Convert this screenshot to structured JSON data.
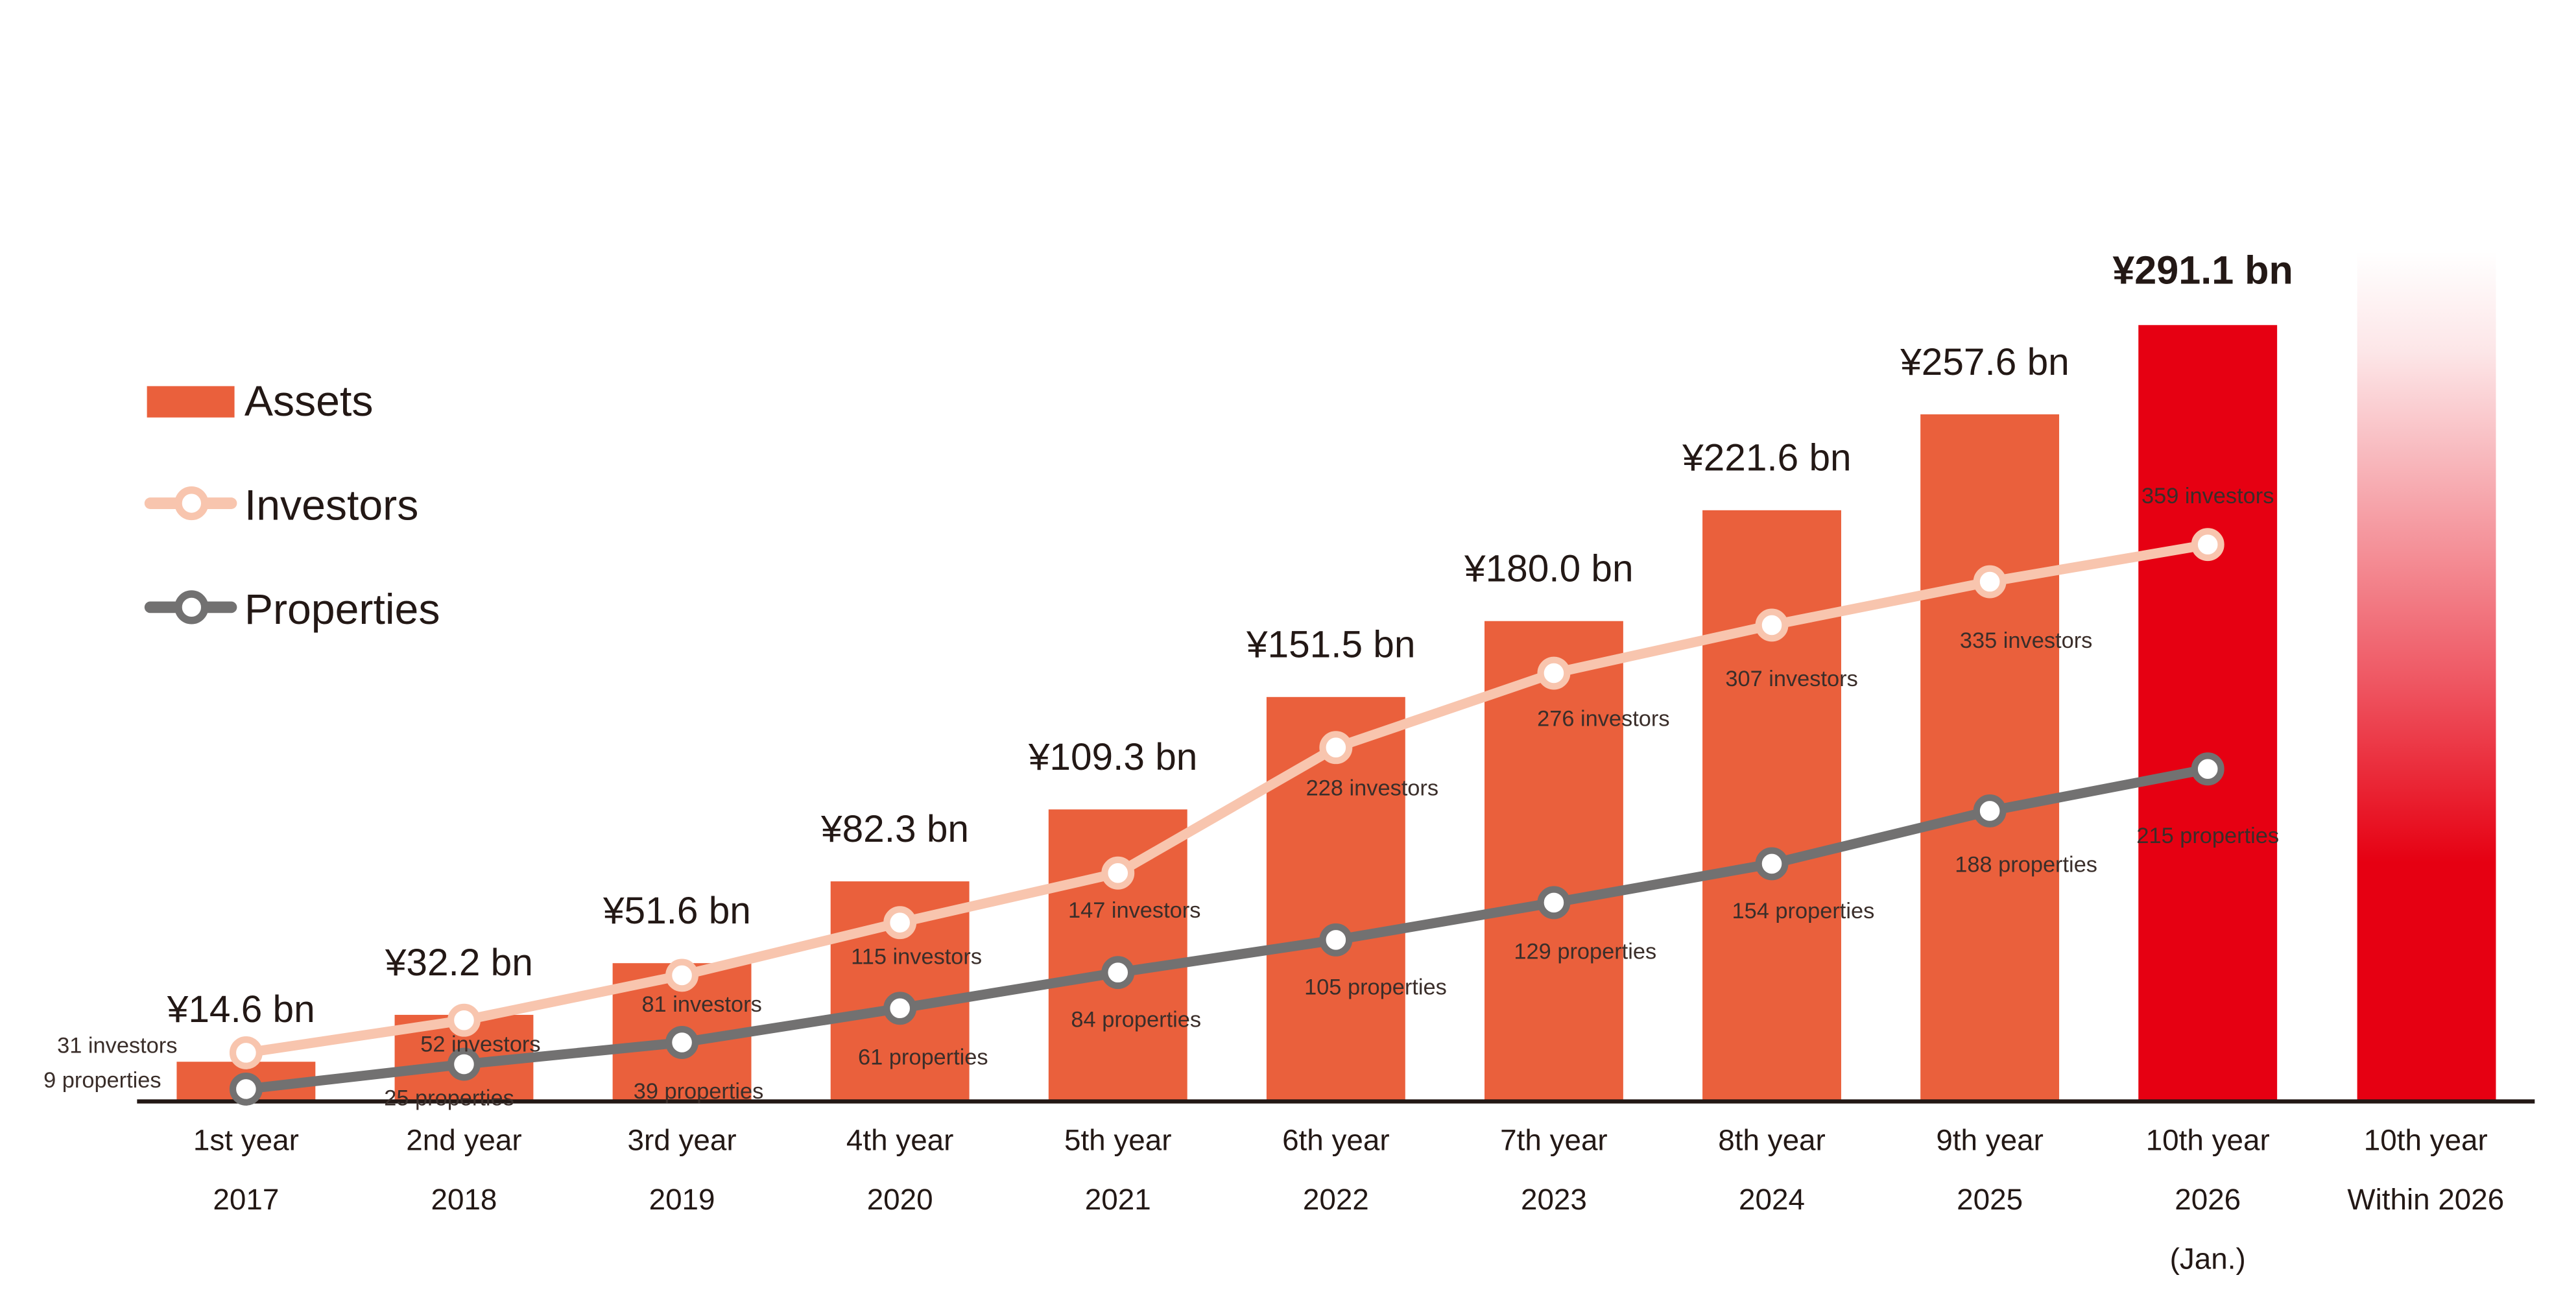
{
  "chart_data": {
    "type": "bar",
    "title": "",
    "xlabel": "",
    "ylabel": "",
    "ylim": [
      0,
      291.1
    ],
    "grid": false,
    "legend_position": "left",
    "legend": [
      {
        "key": "assets",
        "label": "Assets",
        "marker": "bar"
      },
      {
        "key": "investors",
        "label": "Investors",
        "marker": "line-circle"
      },
      {
        "key": "properties",
        "label": "Properties",
        "marker": "line-circle"
      }
    ],
    "categories": [
      {
        "line1": "1st year",
        "line2": "2017",
        "line3": ""
      },
      {
        "line1": "2nd year",
        "line2": "2018",
        "line3": ""
      },
      {
        "line1": "3rd year",
        "line2": "2019",
        "line3": ""
      },
      {
        "line1": "4th year",
        "line2": "2020",
        "line3": ""
      },
      {
        "line1": "5th year",
        "line2": "2021",
        "line3": ""
      },
      {
        "line1": "6th year",
        "line2": "2022",
        "line3": ""
      },
      {
        "line1": "7th year",
        "line2": "2023",
        "line3": ""
      },
      {
        "line1": "8th year",
        "line2": "2024",
        "line3": ""
      },
      {
        "line1": "9th year",
        "line2": "2025",
        "line3": ""
      },
      {
        "line1": "10th year",
        "line2": "2026",
        "line3": "(Jan.)"
      },
      {
        "line1": "10th year",
        "line2": "Within 2026",
        "line3": ""
      }
    ],
    "series": [
      {
        "name": "Assets",
        "unit": "¥ bn",
        "values": [
          14.6,
          32.2,
          51.6,
          82.3,
          109.3,
          151.5,
          180.0,
          221.6,
          257.6,
          291.1,
          null
        ],
        "labels": [
          "¥14.6 bn",
          "¥32.2 bn",
          "¥51.6 bn",
          "¥82.3 bn",
          "¥109.3 bn",
          "¥151.5 bn",
          "¥180.0 bn",
          "¥221.6 bn",
          "¥257.6 bn",
          "¥291.1 bn",
          ""
        ],
        "projected_last": "gradient bar (target within 2026)"
      },
      {
        "name": "Investors",
        "values": [
          31,
          52,
          81,
          115,
          147,
          228,
          276,
          307,
          335,
          359,
          null
        ],
        "labels": [
          "31 investors",
          "52 investors",
          "81 investors",
          "115 investors",
          "147 investors",
          "228 investors",
          "276 investors",
          "307 investors",
          "335 investors",
          "359 investors",
          ""
        ]
      },
      {
        "name": "Properties",
        "values": [
          9,
          25,
          39,
          61,
          84,
          105,
          129,
          154,
          188,
          215,
          null
        ],
        "labels": [
          "9 properties",
          "25 properties",
          "39 properties",
          "61 properties",
          "84 properties",
          "105 properties",
          "129 properties",
          "154 properties",
          "188 properties",
          "215 properties",
          ""
        ]
      }
    ],
    "colors": {
      "assets": "#EA603C",
      "highlight": "#E60012",
      "investors": "#F8C5AE",
      "properties": "#727171",
      "axis": "#231815"
    }
  }
}
